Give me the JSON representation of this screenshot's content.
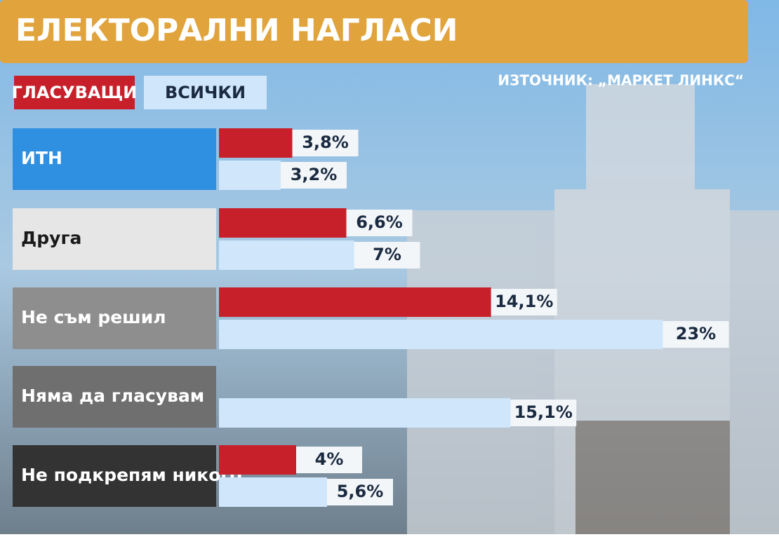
{
  "chart_data": {
    "type": "hbar",
    "title": "ЕЛЕКТОРАЛНИ НАГЛАСИ",
    "source": "ИЗТОЧНИК: „МАРКЕТ ЛИНКС“",
    "categories": [
      "ИТН",
      "Друга",
      "Не съм решил",
      "Няма да гласувам",
      "Не подкрепям никого"
    ],
    "series": [
      {
        "name": "ГЛАСУВАЩИ",
        "color": "#c8202a",
        "values": [
          3.8,
          6.6,
          14.1,
          null,
          4
        ],
        "value_labels": [
          "3,8%",
          "6,6%",
          "14,1%",
          null,
          "4%"
        ]
      },
      {
        "name": "ВСИЧКИ",
        "color": "#cfe6fb",
        "values": [
          3.2,
          7,
          23,
          15.1,
          5.6
        ],
        "value_labels": [
          "3,2%",
          "7%",
          "23%",
          "15,1%",
          "5,6%"
        ]
      }
    ]
  }
}
